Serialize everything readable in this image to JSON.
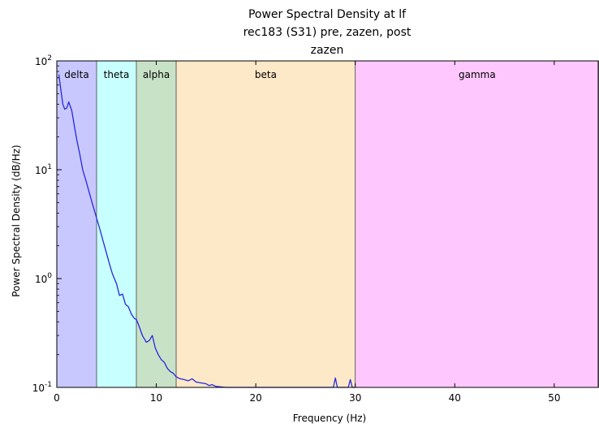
{
  "chart_data": {
    "type": "line",
    "title_lines": [
      "Power Spectral Density at lf",
      "rec183 (S31) pre, zazen, post",
      "zazen"
    ],
    "xlabel": "Frequency (Hz)",
    "ylabel": "Power Spectral Density (dB/Hz)",
    "xlim": [
      0,
      54.5
    ],
    "ylim": [
      0.1,
      100
    ],
    "yscale": "log",
    "x_ticks": [
      0,
      10,
      20,
      30,
      40,
      50
    ],
    "x_tick_labels": [
      "0",
      "10",
      "20",
      "30",
      "40",
      "50"
    ],
    "y_ticks": [
      {
        "value": 0.1,
        "base": "10",
        "exp": "-1"
      },
      {
        "value": 1,
        "base": "10",
        "exp": "0"
      },
      {
        "value": 10,
        "base": "10",
        "exp": "1"
      },
      {
        "value": 100,
        "base": "10",
        "exp": "2"
      }
    ],
    "grid": false,
    "bands": [
      {
        "name": "delta",
        "from": 0,
        "to": 4,
        "color": "#c8c8ff"
      },
      {
        "name": "theta",
        "from": 4,
        "to": 8,
        "color": "#c8ffff"
      },
      {
        "name": "alpha",
        "from": 8,
        "to": 12,
        "color": "#c8e2c8"
      },
      {
        "name": "beta",
        "from": 12,
        "to": 30,
        "color": "#fde8c8"
      },
      {
        "name": "gamma",
        "from": 30,
        "to": 54.5,
        "color": "#fec8fe"
      }
    ],
    "series": [
      {
        "color": "#2727e0",
        "x": [
          0.2,
          0.4,
          0.6,
          0.8,
          1.0,
          1.2,
          1.5,
          1.8,
          2.0,
          2.3,
          2.6,
          3.0,
          3.3,
          3.6,
          4.0,
          4.3,
          4.6,
          5.0,
          5.3,
          5.6,
          6.0,
          6.3,
          6.6,
          6.9,
          7.2,
          7.5,
          7.8,
          8.0,
          8.3,
          8.6,
          9.0,
          9.3,
          9.6,
          9.9,
          10.2,
          10.5,
          10.8,
          11.1,
          11.4,
          11.7,
          12.0,
          12.4,
          12.8,
          13.2,
          13.6,
          14.0,
          14.5,
          15.0,
          15.3,
          15.6,
          16.0,
          16.5,
          17.0,
          17.5,
          18.0,
          19.0,
          20.0,
          22.0,
          24.0,
          26.0,
          27.8,
          28.0,
          28.2,
          28.5,
          29.0,
          29.3,
          29.5,
          29.7,
          30.0
        ],
        "y": [
          75,
          55,
          40,
          36,
          37,
          42,
          35,
          24,
          19,
          14,
          10,
          7.5,
          6.0,
          4.8,
          3.6,
          2.9,
          2.3,
          1.7,
          1.35,
          1.1,
          0.9,
          0.7,
          0.72,
          0.58,
          0.55,
          0.47,
          0.43,
          0.42,
          0.36,
          0.3,
          0.26,
          0.27,
          0.3,
          0.23,
          0.2,
          0.18,
          0.17,
          0.15,
          0.14,
          0.135,
          0.125,
          0.12,
          0.118,
          0.115,
          0.12,
          0.112,
          0.11,
          0.108,
          0.104,
          0.106,
          0.102,
          0.101,
          0.1,
          0.1,
          0.1,
          0.1,
          0.1,
          0.1,
          0.1,
          0.1,
          0.1,
          0.122,
          0.1,
          0.1,
          0.1,
          0.1,
          0.118,
          0.1,
          0.1
        ]
      }
    ]
  }
}
